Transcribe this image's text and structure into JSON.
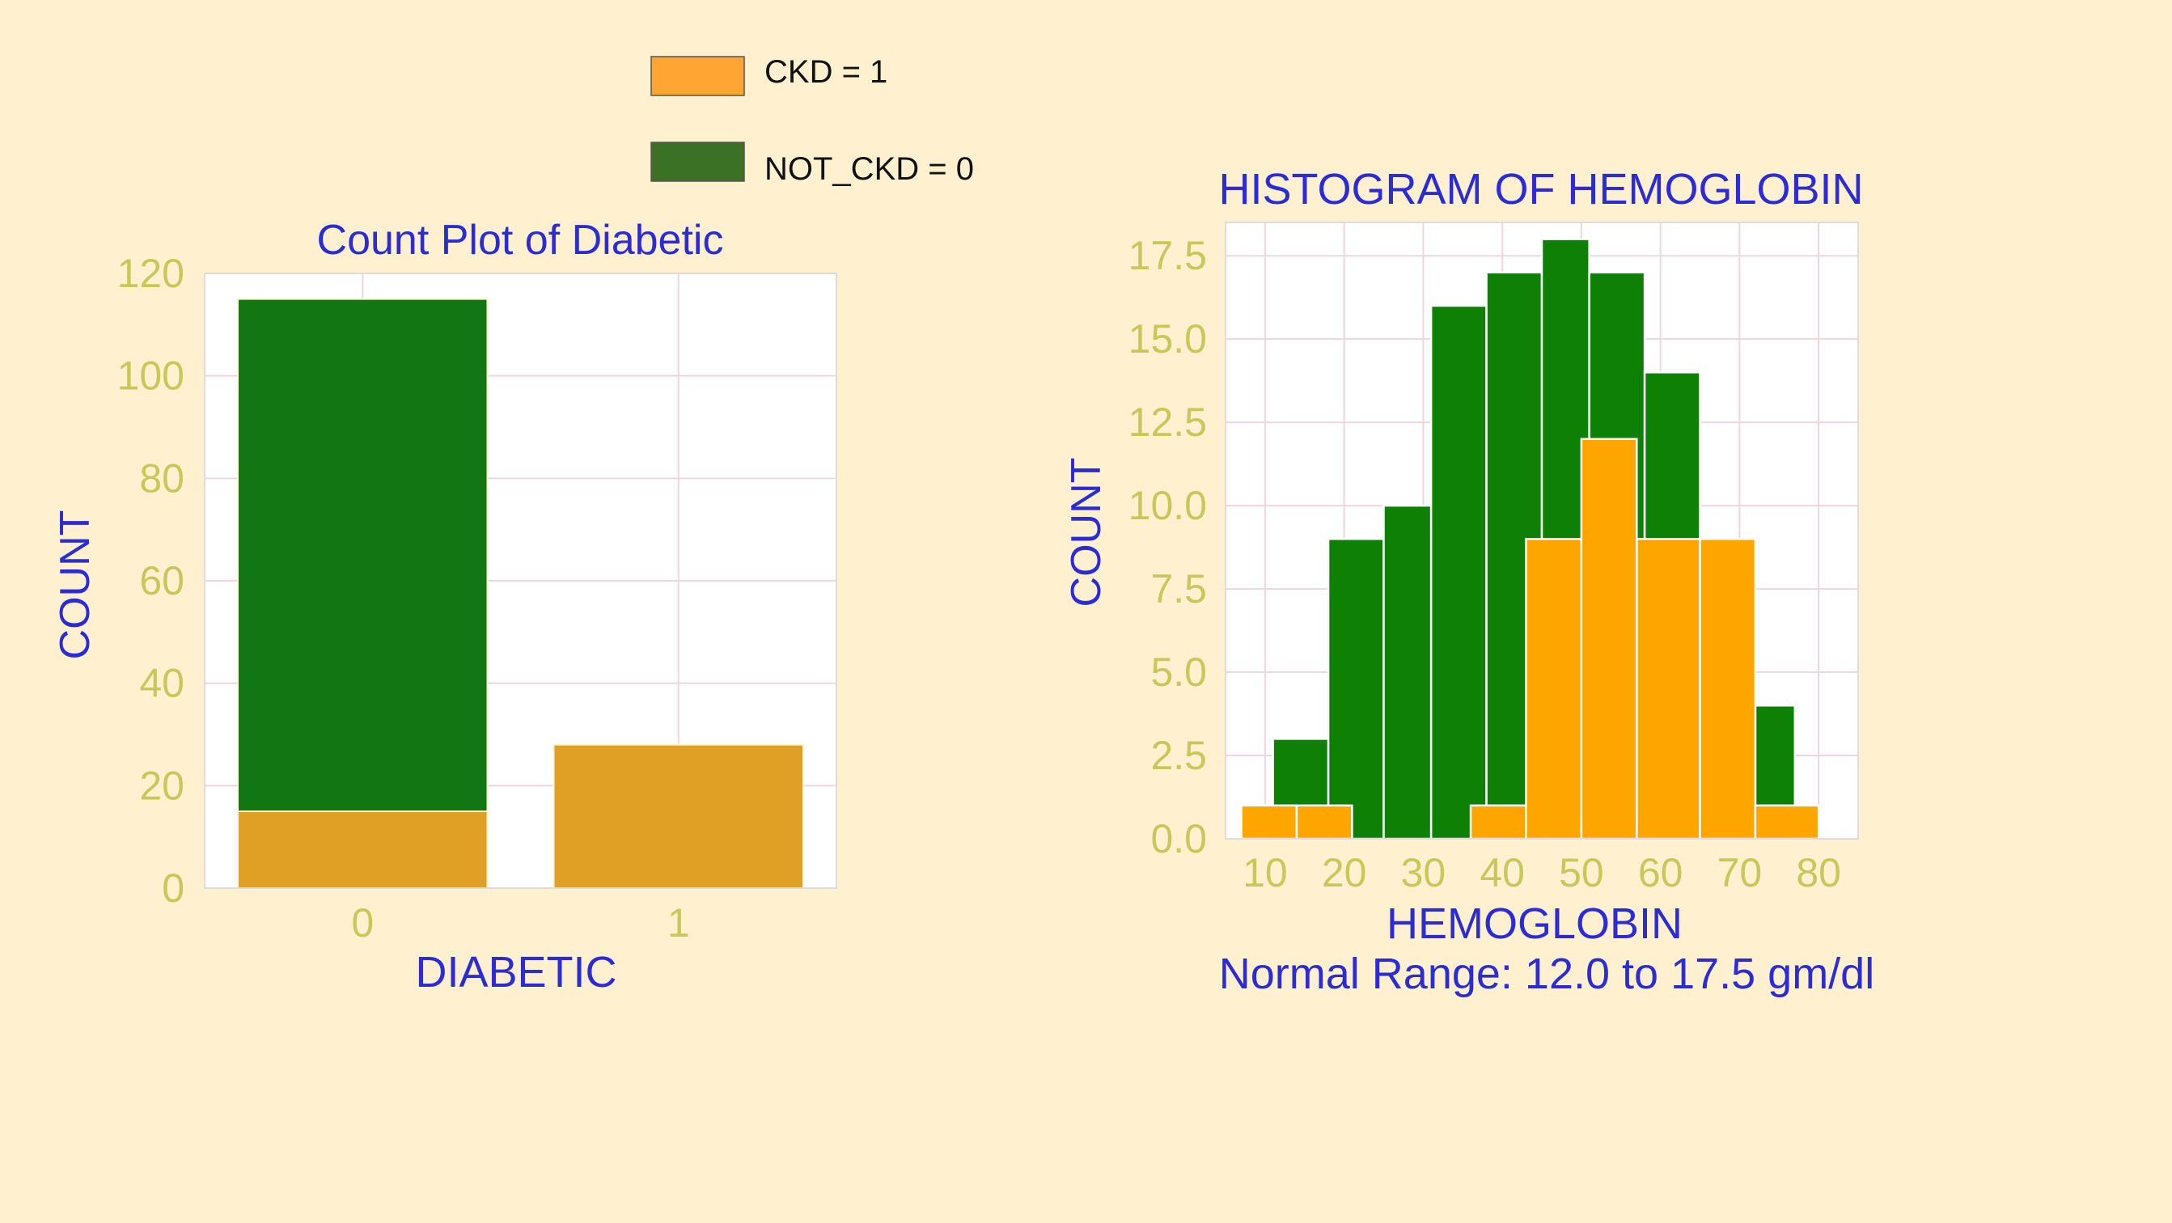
{
  "legend": {
    "items": [
      {
        "label": "CKD = 1",
        "color": "#ffa533"
      },
      {
        "label": "NOT_CKD = 0",
        "color": "#3a7125"
      }
    ]
  },
  "colors": {
    "background": "#fff1cf",
    "title": "#2c2cd6",
    "tick": "#c8c85a",
    "grid": "#f0d5dc",
    "left_not_ckd": "#127612",
    "left_ckd": "#e09f25",
    "right_not_ckd": "#0e8006",
    "right_ckd": "#ffa500"
  },
  "chart_data": [
    {
      "type": "bar",
      "title": "Count Plot of Diabetic",
      "xlabel": "DIABETIC",
      "ylabel": "COUNT",
      "categories": [
        "0",
        "1"
      ],
      "ylim": [
        0,
        120
      ],
      "yticks": [
        0,
        20,
        40,
        60,
        80,
        100,
        120
      ],
      "stacked": true,
      "series": [
        {
          "name": "CKD = 1",
          "values": [
            15,
            28
          ]
        },
        {
          "name": "NOT_CKD = 0",
          "values": [
            100,
            0
          ]
        }
      ],
      "grid": true
    },
    {
      "type": "bar",
      "title": "HISTOGRAM OF HEMOGLOBIN",
      "xlabel": "HEMOGLOBIN",
      "subtitle": "Normal Range: 12.0 to 17.5 gm/dl",
      "ylabel": "COUNT",
      "xlim": [
        5,
        85
      ],
      "ylim": [
        0,
        18.5
      ],
      "xticks": [
        10,
        20,
        30,
        40,
        50,
        60,
        70,
        80
      ],
      "yticks": [
        "0.0",
        "2.5",
        "5.0",
        "7.5",
        "10.0",
        "12.5",
        "15.0",
        "17.5"
      ],
      "grid": true,
      "series": [
        {
          "name": "NOT_CKD = 0",
          "bins": [
            [
              11,
              18,
              3
            ],
            [
              18,
              25,
              9
            ],
            [
              25,
              31,
              10
            ],
            [
              31,
              38,
              16
            ],
            [
              38,
              45,
              17
            ],
            [
              45,
              51,
              18
            ],
            [
              51,
              58,
              17
            ],
            [
              58,
              65,
              14
            ],
            [
              72,
              77,
              4
            ]
          ]
        },
        {
          "name": "CKD = 1",
          "bins": [
            [
              7,
              14,
              1
            ],
            [
              14,
              21,
              1
            ],
            [
              36,
              43,
              1
            ],
            [
              43,
              50,
              9
            ],
            [
              50,
              57,
              12
            ],
            [
              57,
              65,
              9
            ],
            [
              65,
              72,
              9
            ],
            [
              72,
              80,
              1
            ]
          ]
        }
      ]
    }
  ]
}
